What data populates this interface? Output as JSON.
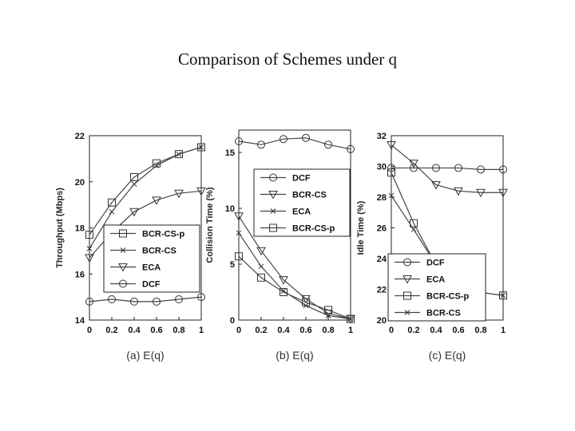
{
  "title": "Comparison of Schemes under q",
  "chart_data": [
    {
      "type": "line",
      "subtitle": "(a) E(q)",
      "ylabel": "Throughput (Mbps)",
      "xlabel": "",
      "x": [
        0,
        0.2,
        0.4,
        0.6,
        0.8,
        1
      ],
      "xticks": [
        "0",
        "0.2",
        "0.4",
        "0.6",
        "0.8",
        "1"
      ],
      "ylim": [
        14,
        22
      ],
      "yticks": [
        "14",
        "16",
        "18",
        "20",
        "22"
      ],
      "legend_position": "bottom-right",
      "series": [
        {
          "name": "BCR-CS-p",
          "marker": "square",
          "values": [
            17.7,
            19.1,
            20.2,
            20.8,
            21.2,
            21.5
          ]
        },
        {
          "name": "BCR-CS",
          "marker": "x",
          "values": [
            17.1,
            18.7,
            19.9,
            20.7,
            21.2,
            21.5
          ]
        },
        {
          "name": "ECA",
          "marker": "triangle",
          "values": [
            16.7,
            17.8,
            18.7,
            19.2,
            19.5,
            19.6
          ]
        },
        {
          "name": "DCF",
          "marker": "circle",
          "values": [
            14.8,
            14.9,
            14.8,
            14.8,
            14.9,
            15.0
          ]
        }
      ]
    },
    {
      "type": "line",
      "subtitle": "(b) E(q)",
      "ylabel": "Collision Time (%)",
      "xlabel": "",
      "x": [
        0,
        0.2,
        0.4,
        0.6,
        0.8,
        1
      ],
      "xticks": [
        "0",
        "0.2",
        "0.4",
        "0.6",
        "0.8",
        "1"
      ],
      "ylim": [
        0,
        17
      ],
      "yticks": [
        "0",
        "5",
        "10",
        "15"
      ],
      "legend_position": "top-right",
      "series": [
        {
          "name": "DCF",
          "marker": "circle",
          "values": [
            16.0,
            15.7,
            16.2,
            16.3,
            15.7,
            15.3
          ]
        },
        {
          "name": "BCR-CS",
          "marker": "triangle",
          "values": [
            9.3,
            6.2,
            3.6,
            1.9,
            0.6,
            0.1
          ]
        },
        {
          "name": "ECA",
          "marker": "x",
          "values": [
            7.8,
            4.8,
            2.6,
            1.3,
            0.4,
            0.1
          ]
        },
        {
          "name": "BCR-CS-p",
          "marker": "square",
          "values": [
            5.7,
            3.8,
            2.5,
            1.6,
            0.9,
            0.1
          ]
        }
      ]
    },
    {
      "type": "line",
      "subtitle": "(c) E(q)",
      "ylabel": "Idle Time (%)",
      "xlabel": "",
      "x": [
        0,
        0.2,
        0.4,
        0.6,
        0.8,
        1
      ],
      "xticks": [
        "0",
        "0.2",
        "0.4",
        "0.6",
        "0.8",
        "1"
      ],
      "ylim": [
        20,
        32
      ],
      "yticks": [
        "20",
        "22",
        "24",
        "26",
        "28",
        "30",
        "32"
      ],
      "legend_position": "bottom-left",
      "series": [
        {
          "name": "DCF",
          "marker": "circle",
          "values": [
            29.9,
            29.9,
            29.9,
            29.9,
            29.8,
            29.8
          ]
        },
        {
          "name": "ECA",
          "marker": "triangle",
          "values": [
            31.4,
            30.2,
            28.8,
            28.4,
            28.3,
            28.3
          ]
        },
        {
          "name": "BCR-CS-p",
          "marker": "square",
          "values": [
            29.6,
            26.3,
            23.6,
            22.3,
            21.8,
            21.6
          ]
        },
        {
          "name": "BCR-CS",
          "marker": "x",
          "values": [
            28.1,
            25.9,
            23.6,
            22.3,
            21.8,
            21.6
          ]
        }
      ]
    }
  ]
}
